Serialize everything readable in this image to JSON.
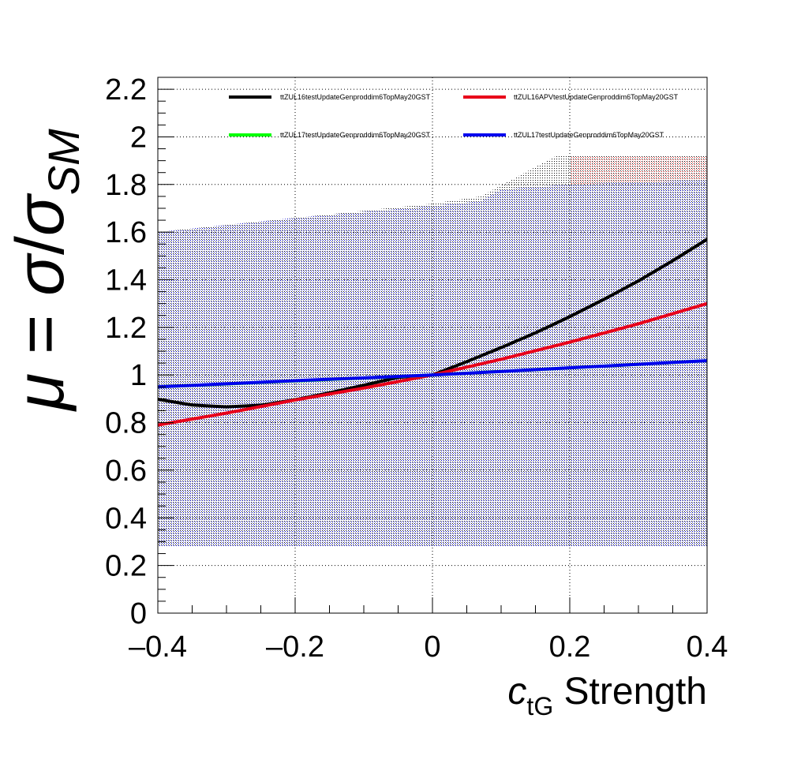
{
  "chart_data": {
    "type": "line",
    "xlabel": {
      "main": "c",
      "sub": "tG",
      "rest": " Strength"
    },
    "ylabel": {
      "mu": "μ",
      "eq": " = ",
      "sigma": "σ",
      "slash": "/",
      "sub": "SM"
    },
    "xlim": [
      -0.4,
      0.4
    ],
    "ylim": [
      0,
      2.25
    ],
    "xticks": [
      -0.4,
      -0.2,
      0,
      0.2,
      0.4
    ],
    "xtick_labels": [
      "–0.4",
      "–0.2",
      "0",
      "0.2",
      "0.4"
    ],
    "yticks": [
      0,
      0.2,
      0.4,
      0.6,
      0.8,
      1,
      1.2,
      1.4,
      1.6,
      1.8,
      2,
      2.2
    ],
    "ytick_labels": [
      "0",
      "0.2",
      "0.4",
      "0.6",
      "0.8",
      "1",
      "1.2",
      "1.4",
      "1.6",
      "1.8",
      "2",
      "2.2"
    ],
    "grid": true,
    "legend": "top",
    "series": [
      {
        "name": "ttZUL16testUpdateGenproddim6TopMay20GST",
        "color": "#000000",
        "x": [
          -0.4,
          -0.35,
          -0.3,
          -0.25,
          -0.2,
          -0.15,
          -0.1,
          -0.05,
          0,
          0.05,
          0.1,
          0.15,
          0.2,
          0.25,
          0.3,
          0.35,
          0.4
        ],
        "y": [
          0.898,
          0.874,
          0.866,
          0.873,
          0.896,
          0.925,
          0.957,
          0.99,
          1.0,
          1.056,
          1.115,
          1.177,
          1.245,
          1.318,
          1.395,
          1.48,
          1.57
        ]
      },
      {
        "name": "ttZUL16APVtestUpdateGenproddim6TopMay20GST",
        "color": "#e8001a",
        "x": [
          -0.4,
          -0.3,
          -0.2,
          -0.1,
          0,
          0.1,
          0.2,
          0.3,
          0.4
        ],
        "y": [
          0.79,
          0.84,
          0.895,
          0.945,
          1.0,
          1.066,
          1.138,
          1.215,
          1.3
        ]
      },
      {
        "name": "ttZUL17testUpdateGenproddim6TopMay20GST",
        "color": "#00ff00",
        "x": [
          -0.4,
          0,
          0.4
        ],
        "y": [
          0.95,
          1.0,
          1.06
        ]
      },
      {
        "name": "ttZUL17testUpdateGenproddim6TopMay20GST",
        "color": "#0000ee",
        "x": [
          -0.4,
          -0.3,
          -0.2,
          -0.1,
          0,
          0.1,
          0.2,
          0.3,
          0.4
        ],
        "y": [
          0.95,
          0.963,
          0.976,
          0.988,
          1.0,
          1.015,
          1.03,
          1.045,
          1.06
        ]
      }
    ],
    "bands": [
      {
        "fill": "#111111",
        "x": [
          -0.4,
          -0.2,
          0,
          0.07,
          0.18,
          0.4
        ],
        "upper": [
          1.6,
          1.66,
          1.72,
          1.75,
          1.92,
          1.92
        ],
        "lower": [
          0.28,
          0.28,
          0.28,
          0.28,
          0.28,
          0.28
        ]
      },
      {
        "fill": "#ee3333",
        "x": [
          0.2,
          0.4
        ],
        "upper": [
          1.92,
          1.92
        ],
        "lower": [
          1.8,
          1.8
        ]
      },
      {
        "fill": "#0000cc",
        "x": [
          -0.4,
          -0.2,
          0,
          0.07,
          0.1,
          0.2,
          0.4
        ],
        "upper": [
          1.6,
          1.66,
          1.71,
          1.73,
          1.78,
          1.8,
          1.82
        ],
        "lower": [
          0.28,
          0.28,
          0.28,
          0.28,
          0.28,
          0.28,
          0.28
        ]
      }
    ]
  }
}
